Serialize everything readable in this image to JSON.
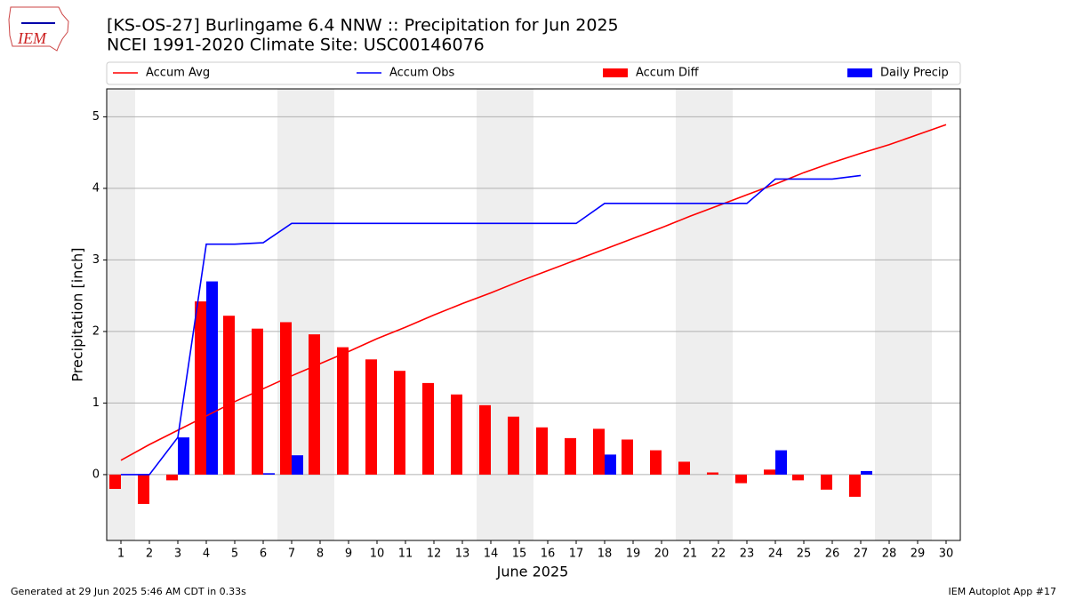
{
  "logo": "IEM",
  "footer_left": "Generated at 29 Jun 2025 5:46 AM CDT in 0.33s",
  "footer_right": "IEM Autoplot App #17",
  "chart_data": {
    "type": "bar",
    "title": "[KS-OS-27] Burlingame 6.4 NNW :: Precipitation for Jun 2025",
    "subtitle": "NCEI 1991-2020 Climate Site: USC00146076",
    "xlabel": "June 2025",
    "ylabel": "Precipitation [inch]",
    "x": [
      1,
      2,
      3,
      4,
      5,
      6,
      7,
      8,
      9,
      10,
      11,
      12,
      13,
      14,
      15,
      16,
      17,
      18,
      19,
      20,
      21,
      22,
      23,
      24,
      25,
      26,
      27,
      28,
      29,
      30
    ],
    "xlim": [
      0.5,
      30.5
    ],
    "xticks": [
      1,
      2,
      3,
      4,
      5,
      6,
      7,
      8,
      9,
      10,
      11,
      12,
      13,
      14,
      15,
      16,
      17,
      18,
      19,
      20,
      21,
      22,
      23,
      24,
      25,
      26,
      27,
      28,
      29,
      30
    ],
    "ylim": [
      -0.92,
      5.39
    ],
    "yticks": [
      0,
      1,
      2,
      3,
      4,
      5
    ],
    "grid": true,
    "shaded_x": [
      [
        0.5,
        1.5
      ],
      [
        6.5,
        8.5
      ],
      [
        13.5,
        15.5
      ],
      [
        20.5,
        22.5
      ],
      [
        27.5,
        29.5
      ]
    ],
    "series": [
      {
        "name": "Accum Avg",
        "type": "line",
        "color": "#ff0000",
        "values": [
          0.2,
          0.42,
          0.62,
          0.82,
          1.02,
          1.2,
          1.38,
          1.55,
          1.72,
          1.9,
          2.06,
          2.23,
          2.39,
          2.54,
          2.7,
          2.85,
          3.0,
          3.15,
          3.3,
          3.45,
          3.61,
          3.76,
          3.91,
          4.06,
          4.22,
          4.36,
          4.49,
          4.61,
          4.75,
          4.89
        ]
      },
      {
        "name": "Accum Obs",
        "type": "line",
        "color": "#0000ff",
        "values": [
          0,
          0,
          0.52,
          3.22,
          3.22,
          3.24,
          3.51,
          3.51,
          3.51,
          3.51,
          3.51,
          3.51,
          3.51,
          3.51,
          3.51,
          3.51,
          3.51,
          3.79,
          3.79,
          3.79,
          3.79,
          3.79,
          3.79,
          4.13,
          4.13,
          4.13,
          4.18,
          null,
          null,
          null
        ]
      },
      {
        "name": "Accum Diff",
        "type": "bar",
        "color": "#ff0000",
        "values": [
          -0.2,
          -0.41,
          -0.08,
          2.42,
          2.22,
          2.04,
          2.13,
          1.96,
          1.78,
          1.61,
          1.45,
          1.28,
          1.12,
          0.97,
          0.81,
          0.66,
          0.51,
          0.64,
          0.49,
          0.34,
          0.18,
          0.03,
          -0.12,
          0.07,
          -0.08,
          -0.21,
          -0.31,
          null,
          null,
          null
        ]
      },
      {
        "name": "Daily Precip",
        "type": "bar",
        "color": "#0000ff",
        "values": [
          0,
          0,
          0.52,
          2.7,
          0,
          0.02,
          0.27,
          0,
          0,
          0,
          0,
          0,
          0,
          0,
          0,
          0,
          0,
          0.28,
          0,
          0,
          0,
          0,
          0,
          0.34,
          0,
          0,
          0.05,
          null,
          null,
          null
        ]
      }
    ]
  }
}
